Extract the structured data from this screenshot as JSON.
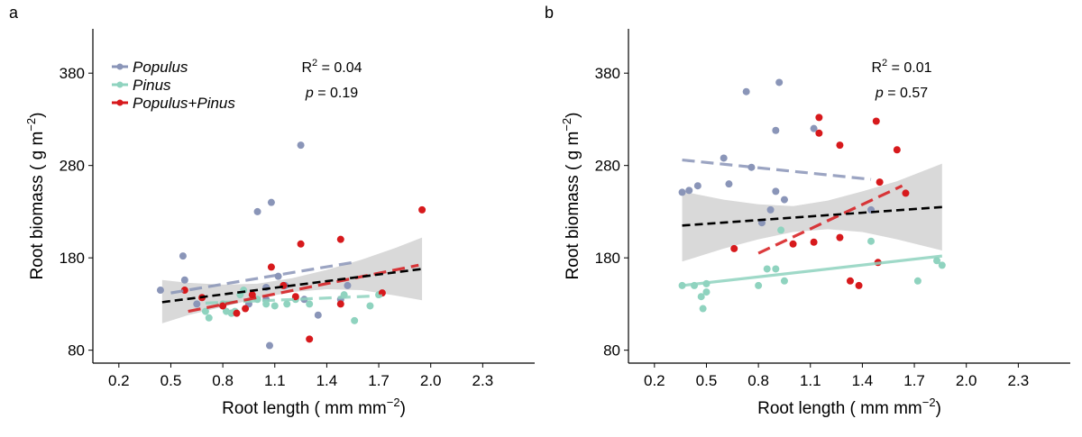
{
  "chart_data": [
    {
      "type": "scatter",
      "panel_label": "a",
      "xlabel": "Root length ( mm mm",
      "xlabel_sup": "−2",
      "xlabel_end": ")",
      "ylabel": "Root biomass ( g m",
      "ylabel_sup": "−2",
      "ylabel_end": ")",
      "xlim": [
        0.05,
        2.6
      ],
      "ylim": [
        66,
        428
      ],
      "xticks": [
        0.2,
        0.5,
        0.8,
        1.1,
        1.4,
        1.7,
        2.0,
        2.3
      ],
      "xtick_labels": [
        "0.2",
        "0.5",
        "0.8",
        "1.1",
        "1.4",
        "1.7",
        "2.0",
        "2.3"
      ],
      "yticks": [
        80,
        180,
        280,
        380
      ],
      "ytick_labels": [
        "80",
        "180",
        "280",
        "380"
      ],
      "legend": {
        "position": "top-left",
        "entries": [
          {
            "label": "Populus",
            "color": "#8a95b8"
          },
          {
            "label": "Pinus",
            "color": "#8fd3bf"
          },
          {
            "label": "Populus+Pinus",
            "color": "#d7191c"
          }
        ]
      },
      "stats": {
        "r2_label": "R",
        "r2_sup": "2",
        "r2_value": " = 0.04",
        "p_label": "p",
        "p_value": " = 0.19"
      },
      "overall_fit": {
        "x": [
          0.45,
          1.95
        ],
        "y": [
          132,
          168
        ],
        "color": "#000000"
      },
      "confidence_band": {
        "x": [
          0.45,
          0.6,
          0.8,
          1.0,
          1.2,
          1.4,
          1.6,
          1.8,
          1.95
        ],
        "upper": [
          156,
          153,
          151,
          152,
          158,
          167,
          178,
          191,
          202
        ],
        "lower": [
          109,
          118,
          127,
          136,
          143,
          146,
          145,
          139,
          134
        ]
      },
      "series": [
        {
          "name": "Populus",
          "color": "#8a95b8",
          "points": [
            [
              0.44,
              145
            ],
            [
              0.57,
              182
            ],
            [
              0.58,
              156
            ],
            [
              0.65,
              130
            ],
            [
              0.8,
              128
            ],
            [
              0.85,
              120
            ],
            [
              0.95,
              130
            ],
            [
              1.0,
              230
            ],
            [
              1.05,
              148
            ],
            [
              1.05,
              135
            ],
            [
              1.07,
              85
            ],
            [
              1.08,
              240
            ],
            [
              1.12,
              160
            ],
            [
              1.16,
              150
            ],
            [
              1.25,
              302
            ],
            [
              1.27,
              135
            ],
            [
              1.35,
              118
            ],
            [
              1.48,
              135
            ],
            [
              1.52,
              150
            ]
          ],
          "fit": {
            "x": [
              0.5,
              1.55
            ],
            "y": [
              142,
              175
            ]
          }
        },
        {
          "name": "Pinus",
          "color": "#8fd3bf",
          "points": [
            [
              0.7,
              122
            ],
            [
              0.72,
              115
            ],
            [
              0.8,
              130
            ],
            [
              0.82,
              122
            ],
            [
              0.85,
              120
            ],
            [
              0.87,
              122
            ],
            [
              0.9,
              140
            ],
            [
              0.92,
              145
            ],
            [
              1.0,
              135
            ],
            [
              1.05,
              130
            ],
            [
              1.1,
              128
            ],
            [
              1.17,
              130
            ],
            [
              1.22,
              135
            ],
            [
              1.3,
              130
            ],
            [
              1.5,
              140
            ],
            [
              1.56,
              112
            ],
            [
              1.65,
              128
            ],
            [
              1.7,
              140
            ]
          ],
          "fit": {
            "x": [
              0.7,
              1.72
            ],
            "y": [
              131,
              139
            ]
          }
        },
        {
          "name": "Populus+Pinus",
          "color": "#d7191c",
          "points": [
            [
              0.58,
              145
            ],
            [
              0.68,
              137
            ],
            [
              0.8,
              128
            ],
            [
              0.88,
              120
            ],
            [
              0.93,
              125
            ],
            [
              0.97,
              140
            ],
            [
              1.08,
              170
            ],
            [
              1.15,
              150
            ],
            [
              1.22,
              138
            ],
            [
              1.25,
              195
            ],
            [
              1.3,
              92
            ],
            [
              1.48,
              200
            ],
            [
              1.48,
              130
            ],
            [
              1.72,
              142
            ],
            [
              1.95,
              232
            ]
          ],
          "fit": {
            "x": [
              0.6,
              1.93
            ],
            "y": [
              122,
              172
            ]
          }
        }
      ]
    },
    {
      "type": "scatter",
      "panel_label": "b",
      "xlabel": "Root length ( mm mm",
      "xlabel_sup": "−2",
      "xlabel_end": ")",
      "ylabel": "Root biomass ( g m",
      "ylabel_sup": "−2",
      "ylabel_end": ")",
      "xlim": [
        0.05,
        2.6
      ],
      "ylim": [
        66,
        428
      ],
      "xticks": [
        0.2,
        0.5,
        0.8,
        1.1,
        1.4,
        1.7,
        2.0,
        2.3
      ],
      "xtick_labels": [
        "0.2",
        "0.5",
        "0.8",
        "1.1",
        "1.4",
        "1.7",
        "2.0",
        "2.3"
      ],
      "yticks": [
        80,
        180,
        280,
        380
      ],
      "ytick_labels": [
        "80",
        "180",
        "280",
        "380"
      ],
      "stats": {
        "r2_label": "R",
        "r2_sup": "2",
        "r2_value": " = 0.01",
        "p_label": "p",
        "p_value": " = 0.57"
      },
      "overall_fit": {
        "x": [
          0.36,
          1.86
        ],
        "y": [
          215,
          235
        ],
        "color": "#000000"
      },
      "confidence_band": {
        "x": [
          0.36,
          0.6,
          0.8,
          1.0,
          1.2,
          1.4,
          1.6,
          1.86
        ],
        "upper": [
          252,
          243,
          238,
          236,
          242,
          252,
          263,
          282
        ],
        "lower": [
          176,
          190,
          200,
          208,
          211,
          208,
          200,
          188
        ]
      },
      "series": [
        {
          "name": "Populus",
          "color": "#8a95b8",
          "points": [
            [
              0.36,
              251
            ],
            [
              0.4,
              253
            ],
            [
              0.45,
              258
            ],
            [
              0.6,
              288
            ],
            [
              0.63,
              260
            ],
            [
              0.73,
              360
            ],
            [
              0.76,
              278
            ],
            [
              0.82,
              218
            ],
            [
              0.87,
              232
            ],
            [
              0.9,
              252
            ],
            [
              0.9,
              318
            ],
            [
              0.92,
              370
            ],
            [
              0.95,
              243
            ],
            [
              1.12,
              320
            ],
            [
              1.45,
              232
            ]
          ],
          "fit": {
            "x": [
              0.36,
              1.45
            ],
            "y": [
              286,
              265
            ]
          }
        },
        {
          "name": "Pinus",
          "color": "#8fd3bf",
          "points": [
            [
              0.36,
              150
            ],
            [
              0.43,
              150
            ],
            [
              0.47,
              138
            ],
            [
              0.48,
              125
            ],
            [
              0.5,
              152
            ],
            [
              0.5,
              143
            ],
            [
              0.8,
              150
            ],
            [
              0.85,
              168
            ],
            [
              0.9,
              168
            ],
            [
              0.93,
              210
            ],
            [
              0.95,
              155
            ],
            [
              1.45,
              198
            ],
            [
              1.72,
              155
            ],
            [
              1.83,
              177
            ],
            [
              1.86,
              172
            ]
          ],
          "fit": {
            "x": [
              0.36,
              1.86
            ],
            "y": [
              150,
              182
            ]
          }
        },
        {
          "name": "Populus+Pinus",
          "color": "#d7191c",
          "points": [
            [
              0.66,
              190
            ],
            [
              1.0,
              195
            ],
            [
              1.12,
              197
            ],
            [
              1.15,
              332
            ],
            [
              1.15,
              315
            ],
            [
              1.27,
              302
            ],
            [
              1.27,
              202
            ],
            [
              1.33,
              155
            ],
            [
              1.38,
              150
            ],
            [
              1.48,
              328
            ],
            [
              1.49,
              175
            ],
            [
              1.5,
              262
            ],
            [
              1.6,
              297
            ],
            [
              1.65,
              250
            ]
          ],
          "fit": {
            "x": [
              0.8,
              1.63
            ],
            "y": [
              185,
              258
            ]
          }
        }
      ]
    }
  ]
}
